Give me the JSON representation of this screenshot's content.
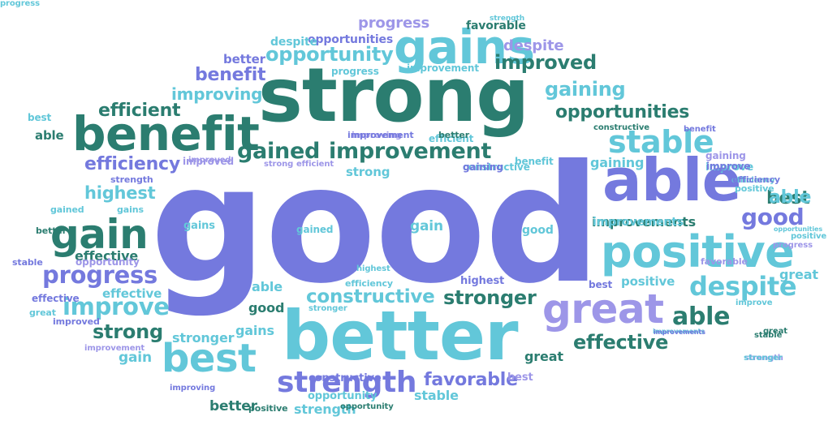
{
  "palette": {
    "periwinkle": "#7479de",
    "light_teal": "#62c7d9",
    "dark_green": "#2b7d70",
    "lavender": "#9d96e8"
  },
  "words": [
    {
      "text": "good",
      "color": "periwinkle"
    },
    {
      "text": "strong",
      "color": "dark_green"
    },
    {
      "text": "better",
      "color": "light_teal"
    },
    {
      "text": "benefit",
      "color": "dark_green"
    },
    {
      "text": "able",
      "color": "periwinkle"
    },
    {
      "text": "positive",
      "color": "light_teal"
    },
    {
      "text": "gains",
      "color": "light_teal"
    },
    {
      "text": "gain",
      "color": "dark_green"
    },
    {
      "text": "great",
      "color": "lavender"
    },
    {
      "text": "best",
      "color": "light_teal"
    },
    {
      "text": "strength",
      "color": "periwinkle"
    },
    {
      "text": "improvement",
      "color": "dark_green"
    },
    {
      "text": "gained",
      "color": "dark_green"
    },
    {
      "text": "stable",
      "color": "light_teal"
    },
    {
      "text": "progress",
      "color": "periwinkle"
    },
    {
      "text": "improve",
      "color": "light_teal"
    },
    {
      "text": "despite",
      "color": "light_teal"
    },
    {
      "text": "opportunity",
      "color": "light_teal"
    },
    {
      "text": "improved",
      "color": "dark_green"
    },
    {
      "text": "gaining",
      "color": "light_teal"
    },
    {
      "text": "opportunities",
      "color": "dark_green"
    },
    {
      "text": "efficient",
      "color": "dark_green"
    },
    {
      "text": "efficiency",
      "color": "periwinkle"
    },
    {
      "text": "highest",
      "color": "light_teal"
    },
    {
      "text": "constructive",
      "color": "light_teal"
    },
    {
      "text": "stronger",
      "color": "dark_green"
    },
    {
      "text": "able",
      "color": "dark_green"
    },
    {
      "text": "effective",
      "color": "dark_green"
    },
    {
      "text": "favorable",
      "color": "periwinkle"
    },
    {
      "text": "good",
      "color": "periwinkle"
    },
    {
      "text": "best",
      "color": "dark_green"
    },
    {
      "text": "benefit",
      "color": "periwinkle"
    },
    {
      "text": "improving",
      "color": "light_teal"
    },
    {
      "text": "improvements",
      "color": "dark_green"
    },
    {
      "text": "progress",
      "color": "lavender"
    },
    {
      "text": "despite",
      "color": "lavender"
    },
    {
      "text": "opportunities",
      "color": "periwinkle"
    },
    {
      "text": "better",
      "color": "periwinkle"
    },
    {
      "text": "favorable",
      "color": "dark_green"
    },
    {
      "text": "strength",
      "color": "light_teal"
    },
    {
      "text": "strength",
      "color": "lavender"
    },
    {
      "text": "despite",
      "color": "light_teal"
    },
    {
      "text": "progress",
      "color": "light_teal"
    },
    {
      "text": "improvement",
      "color": "light_teal"
    },
    {
      "text": "effective",
      "color": "light_teal"
    },
    {
      "text": "better",
      "color": "dark_green"
    },
    {
      "text": "able",
      "color": "dark_green"
    },
    {
      "text": "stable",
      "color": "light_teal"
    },
    {
      "text": "effective",
      "color": "dark_green"
    },
    {
      "text": "strength",
      "color": "light_teal"
    },
    {
      "text": "gained",
      "color": "light_teal"
    },
    {
      "text": "gains",
      "color": "light_teal"
    },
    {
      "text": "gains",
      "color": "light_teal"
    },
    {
      "text": "opportunity",
      "color": "light_teal"
    },
    {
      "text": "great",
      "color": "dark_green"
    },
    {
      "text": "improved",
      "color": "lavender"
    },
    {
      "text": "improvement",
      "color": "lavender"
    },
    {
      "text": "improving",
      "color": "periwinkle"
    },
    {
      "text": "positive",
      "color": "dark_green"
    },
    {
      "text": "great",
      "color": "light_teal"
    },
    {
      "text": "improvements",
      "color": "light_teal"
    },
    {
      "text": "efficient",
      "color": "light_teal"
    },
    {
      "text": "efficiency",
      "color": "light_teal"
    },
    {
      "text": "improve",
      "color": "light_teal"
    },
    {
      "text": "constructive",
      "color": "periwinkle"
    },
    {
      "text": "constructive",
      "color": "dark_green"
    },
    {
      "text": "benefit",
      "color": "periwinkle"
    },
    {
      "text": "strong",
      "color": "light_teal"
    },
    {
      "text": "strong",
      "color": "dark_green"
    },
    {
      "text": "strong",
      "color": "lavender"
    },
    {
      "text": "efficient",
      "color": "lavender"
    },
    {
      "text": "stronger",
      "color": "light_teal"
    },
    {
      "text": "stronger",
      "color": "light_teal"
    },
    {
      "text": "highest",
      "color": "periwinkle"
    },
    {
      "text": "highest",
      "color": "light_teal"
    },
    {
      "text": "efficiency",
      "color": "light_teal"
    },
    {
      "text": "gaining",
      "color": "light_teal"
    },
    {
      "text": "gaining",
      "color": "lavender"
    },
    {
      "text": "improve",
      "color": "light_teal"
    },
    {
      "text": "opportunity",
      "color": "lavender"
    },
    {
      "text": "good",
      "color": "dark_green"
    },
    {
      "text": "good",
      "color": "light_teal"
    },
    {
      "text": "gain",
      "color": "light_teal"
    },
    {
      "text": "gain",
      "color": "light_teal"
    },
    {
      "text": "gains",
      "color": "light_teal"
    },
    {
      "text": "improving",
      "color": "lavender"
    },
    {
      "text": "best",
      "color": "periwinkle"
    },
    {
      "text": "best",
      "color": "lavender"
    },
    {
      "text": "favorable",
      "color": "lavender"
    },
    {
      "text": "positive",
      "color": "light_teal"
    },
    {
      "text": "positive",
      "color": "light_teal"
    },
    {
      "text": "able",
      "color": "light_teal"
    },
    {
      "text": "stable",
      "color": "periwinkle"
    },
    {
      "text": "stable",
      "color": "dark_green"
    },
    {
      "text": "progress",
      "color": "lavender"
    },
    {
      "text": "gained",
      "color": "light_teal"
    },
    {
      "text": "improved",
      "color": "lavender"
    },
    {
      "text": "great",
      "color": "dark_green"
    },
    {
      "text": "improvement",
      "color": "periwinkle"
    },
    {
      "text": "improvements",
      "color": "periwinkle"
    },
    {
      "text": "better",
      "color": "dark_green"
    },
    {
      "text": "effective",
      "color": "periwinkle"
    },
    {
      "text": "improved",
      "color": "periwinkle"
    },
    {
      "text": "improve",
      "color": "periwinkle"
    },
    {
      "text": "opportunity",
      "color": "dark_green"
    },
    {
      "text": "strength",
      "color": "periwinkle"
    },
    {
      "text": "improvements",
      "color": "light_teal"
    },
    {
      "text": "opportunities",
      "color": "light_teal"
    },
    {
      "text": "positive",
      "color": "light_teal"
    },
    {
      "text": "benefit",
      "color": "light_teal"
    },
    {
      "text": "constructive",
      "color": "light_teal"
    },
    {
      "text": "efficiency",
      "color": "periwinkle"
    },
    {
      "text": "able",
      "color": "light_teal"
    },
    {
      "text": "best",
      "color": "light_teal"
    },
    {
      "text": "great",
      "color": "light_teal"
    },
    {
      "text": "gaining",
      "color": "periwinkle"
    },
    {
      "text": "stronger",
      "color": "light_teal"
    },
    {
      "text": "better",
      "color": "dark_green"
    },
    {
      "text": "progress",
      "color": "light_teal"
    }
  ]
}
